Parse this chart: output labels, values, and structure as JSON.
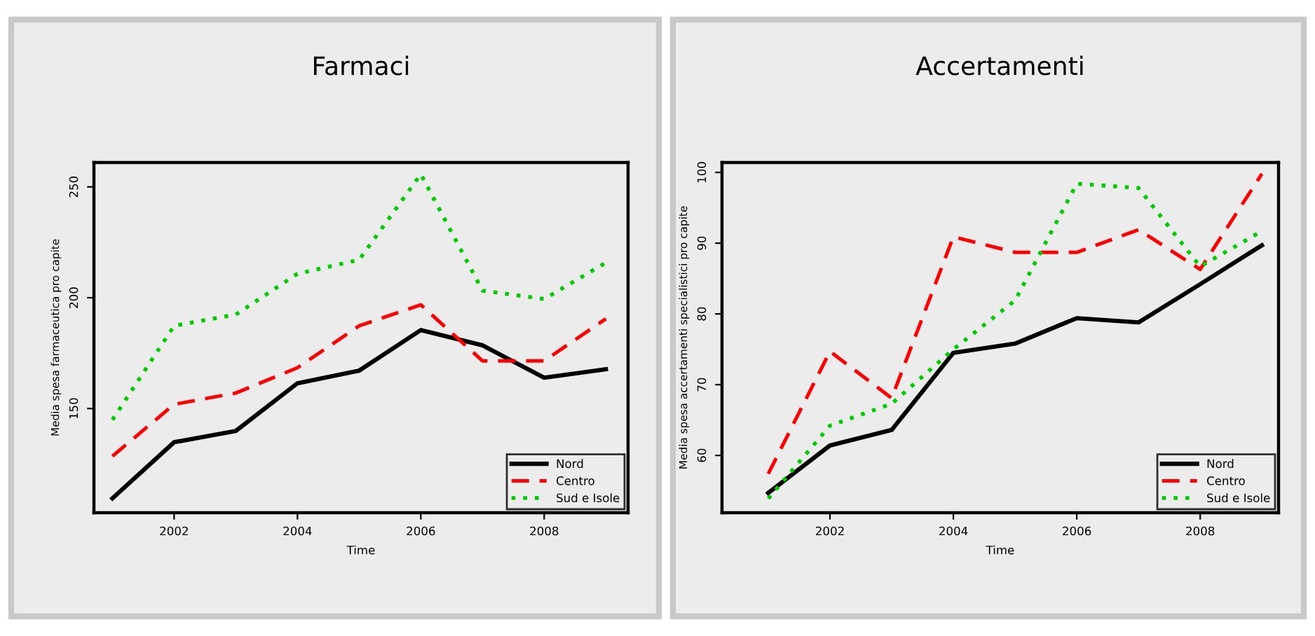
{
  "chart_data": [
    {
      "type": "line",
      "title": "Farmaci",
      "xlabel": "Time",
      "ylabel": "Media spesa farmaceutica pro capite",
      "x": [
        2001,
        2002,
        2003,
        2004,
        2005,
        2006,
        2007,
        2008,
        2009
      ],
      "xlim": [
        2000.7,
        2009.36
      ],
      "xticks": [
        2002,
        2004,
        2006,
        2008
      ],
      "ylim": [
        103,
        261
      ],
      "yticks": [
        150,
        200,
        250
      ],
      "legend": "bottom right",
      "grid": false,
      "series": [
        {
          "name": "Nord",
          "color": "#000000",
          "line_style": "solid",
          "values": [
            109.5,
            134.8,
            139.9,
            161.4,
            167.1,
            185.4,
            178.5,
            163.9,
            167.7
          ]
        },
        {
          "name": "Centro",
          "color": "#ff0000",
          "line_style": "dashed",
          "values": [
            128.5,
            151.9,
            157,
            168.4,
            187.3,
            196.8,
            171.5,
            171.5,
            190.5
          ]
        },
        {
          "name": "Sud e Isole",
          "color": "#00cc00",
          "line_style": "dotted",
          "values": [
            144.9,
            187.3,
            192.4,
            210.8,
            217.1,
            255.7,
            203.2,
            199.4,
            215.8
          ]
        }
      ]
    },
    {
      "type": "line",
      "title": "Accertamenti",
      "xlabel": "Time",
      "ylabel": "Media spesa accertamenti specialistici pro capite",
      "x": [
        2001,
        2002,
        2003,
        2004,
        2005,
        2006,
        2007,
        2008,
        2009
      ],
      "xlim": [
        2000.25,
        2009.27
      ],
      "xticks": [
        2002,
        2004,
        2006,
        2008
      ],
      "ylim": [
        51.9,
        101.4
      ],
      "yticks": [
        60,
        70,
        80,
        90,
        100
      ],
      "legend": "bottom right",
      "grid": false,
      "series": [
        {
          "name": "Nord",
          "color": "#000000",
          "line_style": "solid",
          "values": [
            54.7,
            61.4,
            63.6,
            74.5,
            75.8,
            79.4,
            78.8,
            84.2,
            89.7
          ]
        },
        {
          "name": "Centro",
          "color": "#ff0000",
          "line_style": "dashed",
          "values": [
            57.4,
            74.7,
            68.1,
            90.9,
            88.7,
            88.7,
            91.9,
            86.3,
            99.8
          ]
        },
        {
          "name": "Sud e Isole",
          "color": "#00cc00",
          "line_style": "dotted",
          "values": [
            53.9,
            64.2,
            67.3,
            75.0,
            81.9,
            98.4,
            97.8,
            86.7,
            91.7
          ]
        }
      ]
    }
  ]
}
